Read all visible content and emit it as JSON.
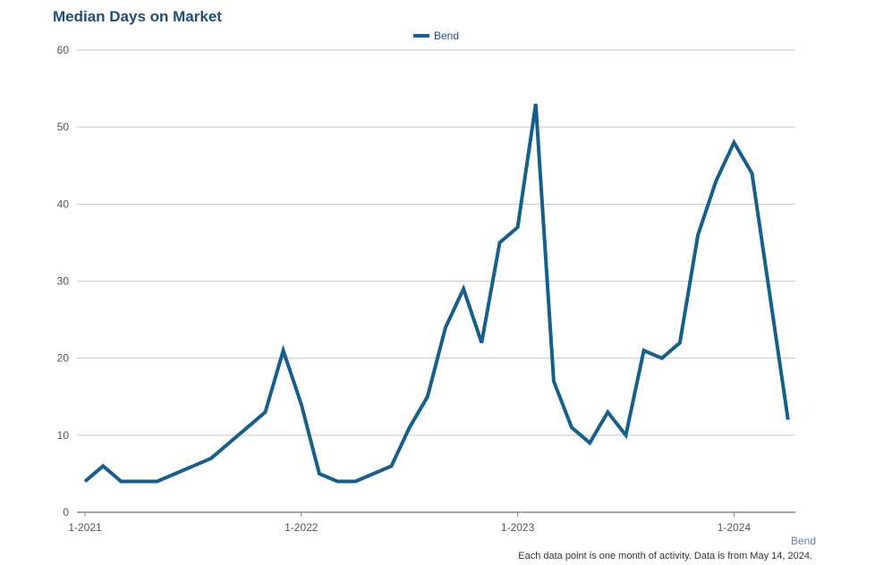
{
  "chart_title": "Median Days on Market",
  "source_label": "Bend",
  "footnote": "Each data point is one month of activity. Data is from May 14, 2024.",
  "colors": {
    "line": "#155f8c",
    "grid": "#c8c8c8",
    "axis": "#888888"
  },
  "chart_data": {
    "type": "line",
    "title": "Median Days on Market",
    "xlabel": "",
    "ylabel": "",
    "ylim": [
      0,
      60
    ],
    "yticks": [
      0,
      10,
      20,
      30,
      40,
      50,
      60
    ],
    "xticks": [
      "1-2021",
      "1-2022",
      "1-2023",
      "1-2024"
    ],
    "grid": true,
    "legend_position": "top-center",
    "series": [
      {
        "name": "Bend",
        "x": [
          "1-2021",
          "2-2021",
          "3-2021",
          "4-2021",
          "5-2021",
          "6-2021",
          "7-2021",
          "8-2021",
          "9-2021",
          "10-2021",
          "11-2021",
          "12-2021",
          "1-2022",
          "2-2022",
          "3-2022",
          "4-2022",
          "5-2022",
          "6-2022",
          "7-2022",
          "8-2022",
          "9-2022",
          "10-2022",
          "11-2022",
          "12-2022",
          "1-2023",
          "2-2023",
          "3-2023",
          "4-2023",
          "5-2023",
          "6-2023",
          "7-2023",
          "8-2023",
          "9-2023",
          "10-2023",
          "11-2023",
          "12-2023",
          "1-2024",
          "2-2024",
          "3-2024",
          "4-2024"
        ],
        "values": [
          4,
          6,
          4,
          4,
          4,
          5,
          6,
          7,
          9,
          11,
          13,
          21,
          14,
          5,
          4,
          4,
          5,
          6,
          11,
          15,
          24,
          29,
          22,
          35,
          37,
          53,
          17,
          11,
          9,
          13,
          10,
          21,
          20,
          22,
          36,
          43,
          48,
          44,
          28,
          12
        ]
      }
    ]
  }
}
